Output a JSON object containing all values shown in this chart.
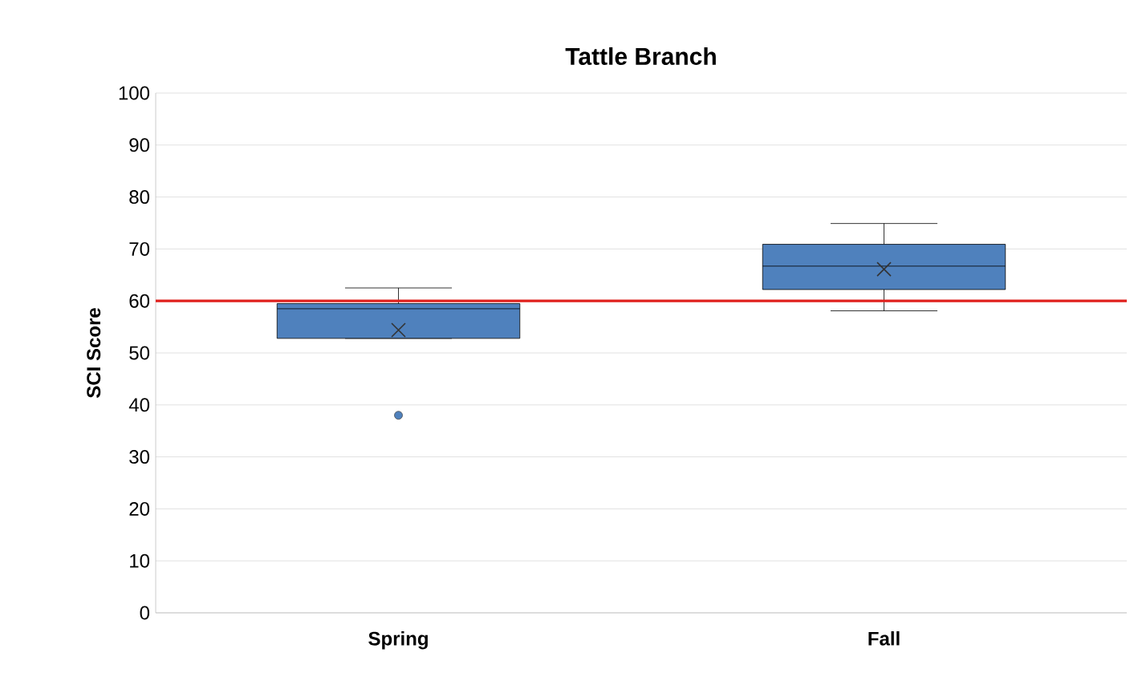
{
  "chart_data": {
    "type": "box",
    "title": "Tattle Branch",
    "ylabel": "SCI Score",
    "categories": [
      "Spring",
      "Fall"
    ],
    "color": "#4f81bd",
    "boxes": [
      {
        "low": 52.8,
        "q1": 52.8,
        "median": 58.5,
        "q3": 59.5,
        "high": 62.5,
        "mean": 54.4,
        "outliers": [
          38
        ]
      },
      {
        "low": 58.1,
        "q1": 62.2,
        "median": 66.7,
        "q3": 70.9,
        "high": 74.9,
        "mean": 66.1
      }
    ],
    "ylim": [
      0,
      100
    ],
    "yticks": [
      0,
      10,
      20,
      30,
      40,
      50,
      60,
      70,
      80,
      90,
      100
    ],
    "grid": "y",
    "ref_lines": [
      {
        "axis": "y",
        "value": 60,
        "color": "#e0201c"
      }
    ]
  }
}
